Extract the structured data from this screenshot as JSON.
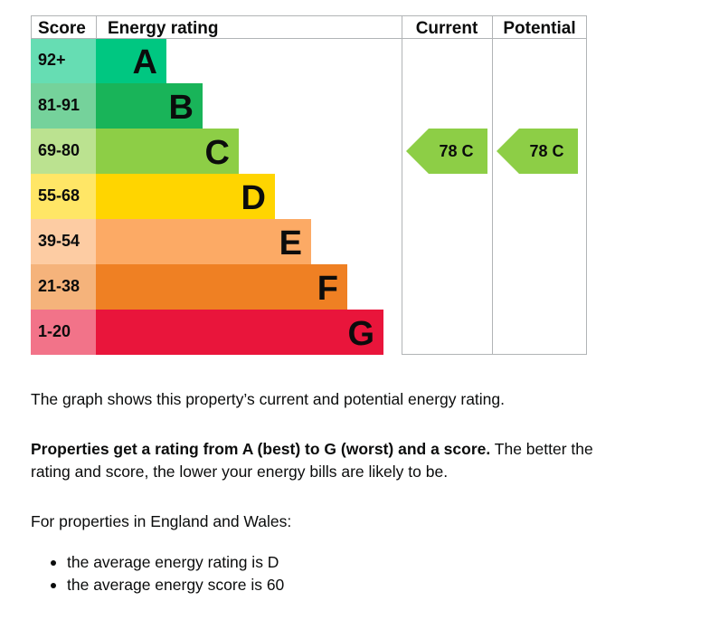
{
  "chart_data": {
    "type": "bar",
    "headers": {
      "score": "Score",
      "rating": "Energy rating",
      "current": "Current",
      "potential": "Potential"
    },
    "bands": [
      {
        "letter": "A",
        "range": "92+",
        "score_min": 92,
        "score_max": null,
        "color": "#00c781",
        "label_bg": "#66dd b3"
      },
      {
        "letter": "B",
        "range": "81-91",
        "score_min": 81,
        "score_max": 91,
        "color": "#19b459",
        "label_bg": "#75d29b"
      },
      {
        "letter": "C",
        "range": "69-80",
        "score_min": 69,
        "score_max": 80,
        "color": "#8dce46",
        "label_bg": "#bbe290"
      },
      {
        "letter": "D",
        "range": "55-68",
        "score_min": 55,
        "score_max": 68,
        "color": "#ffd500",
        "label_bg": "#ffe666"
      },
      {
        "letter": "E",
        "range": "39-54",
        "score_min": 39,
        "score_max": 54,
        "color": "#fcaa65",
        "label_bg": "#fdcca3"
      },
      {
        "letter": "F",
        "range": "21-38",
        "score_min": 21,
        "score_max": 38,
        "color": "#ef8023",
        "label_bg": "#f5b37b"
      },
      {
        "letter": "G",
        "range": "1-20",
        "score_min": 1,
        "score_max": 20,
        "color": "#e9153b",
        "label_bg": "#f27389"
      }
    ],
    "current": {
      "score": 78,
      "letter": "C",
      "label": "78  C"
    },
    "potential": {
      "score": 78,
      "letter": "C",
      "label": "78  C"
    }
  },
  "text": {
    "para1": "The graph shows this property’s current and potential energy rating.",
    "para2_bold": "Properties get a rating from A (best) to G (worst) and a score.",
    "para2_rest": " The better the rating and score, the lower your energy bills are likely to be.",
    "para3": "For properties in England and Wales:",
    "bullets": [
      "the average energy rating is D",
      "the average energy score is 60"
    ]
  }
}
